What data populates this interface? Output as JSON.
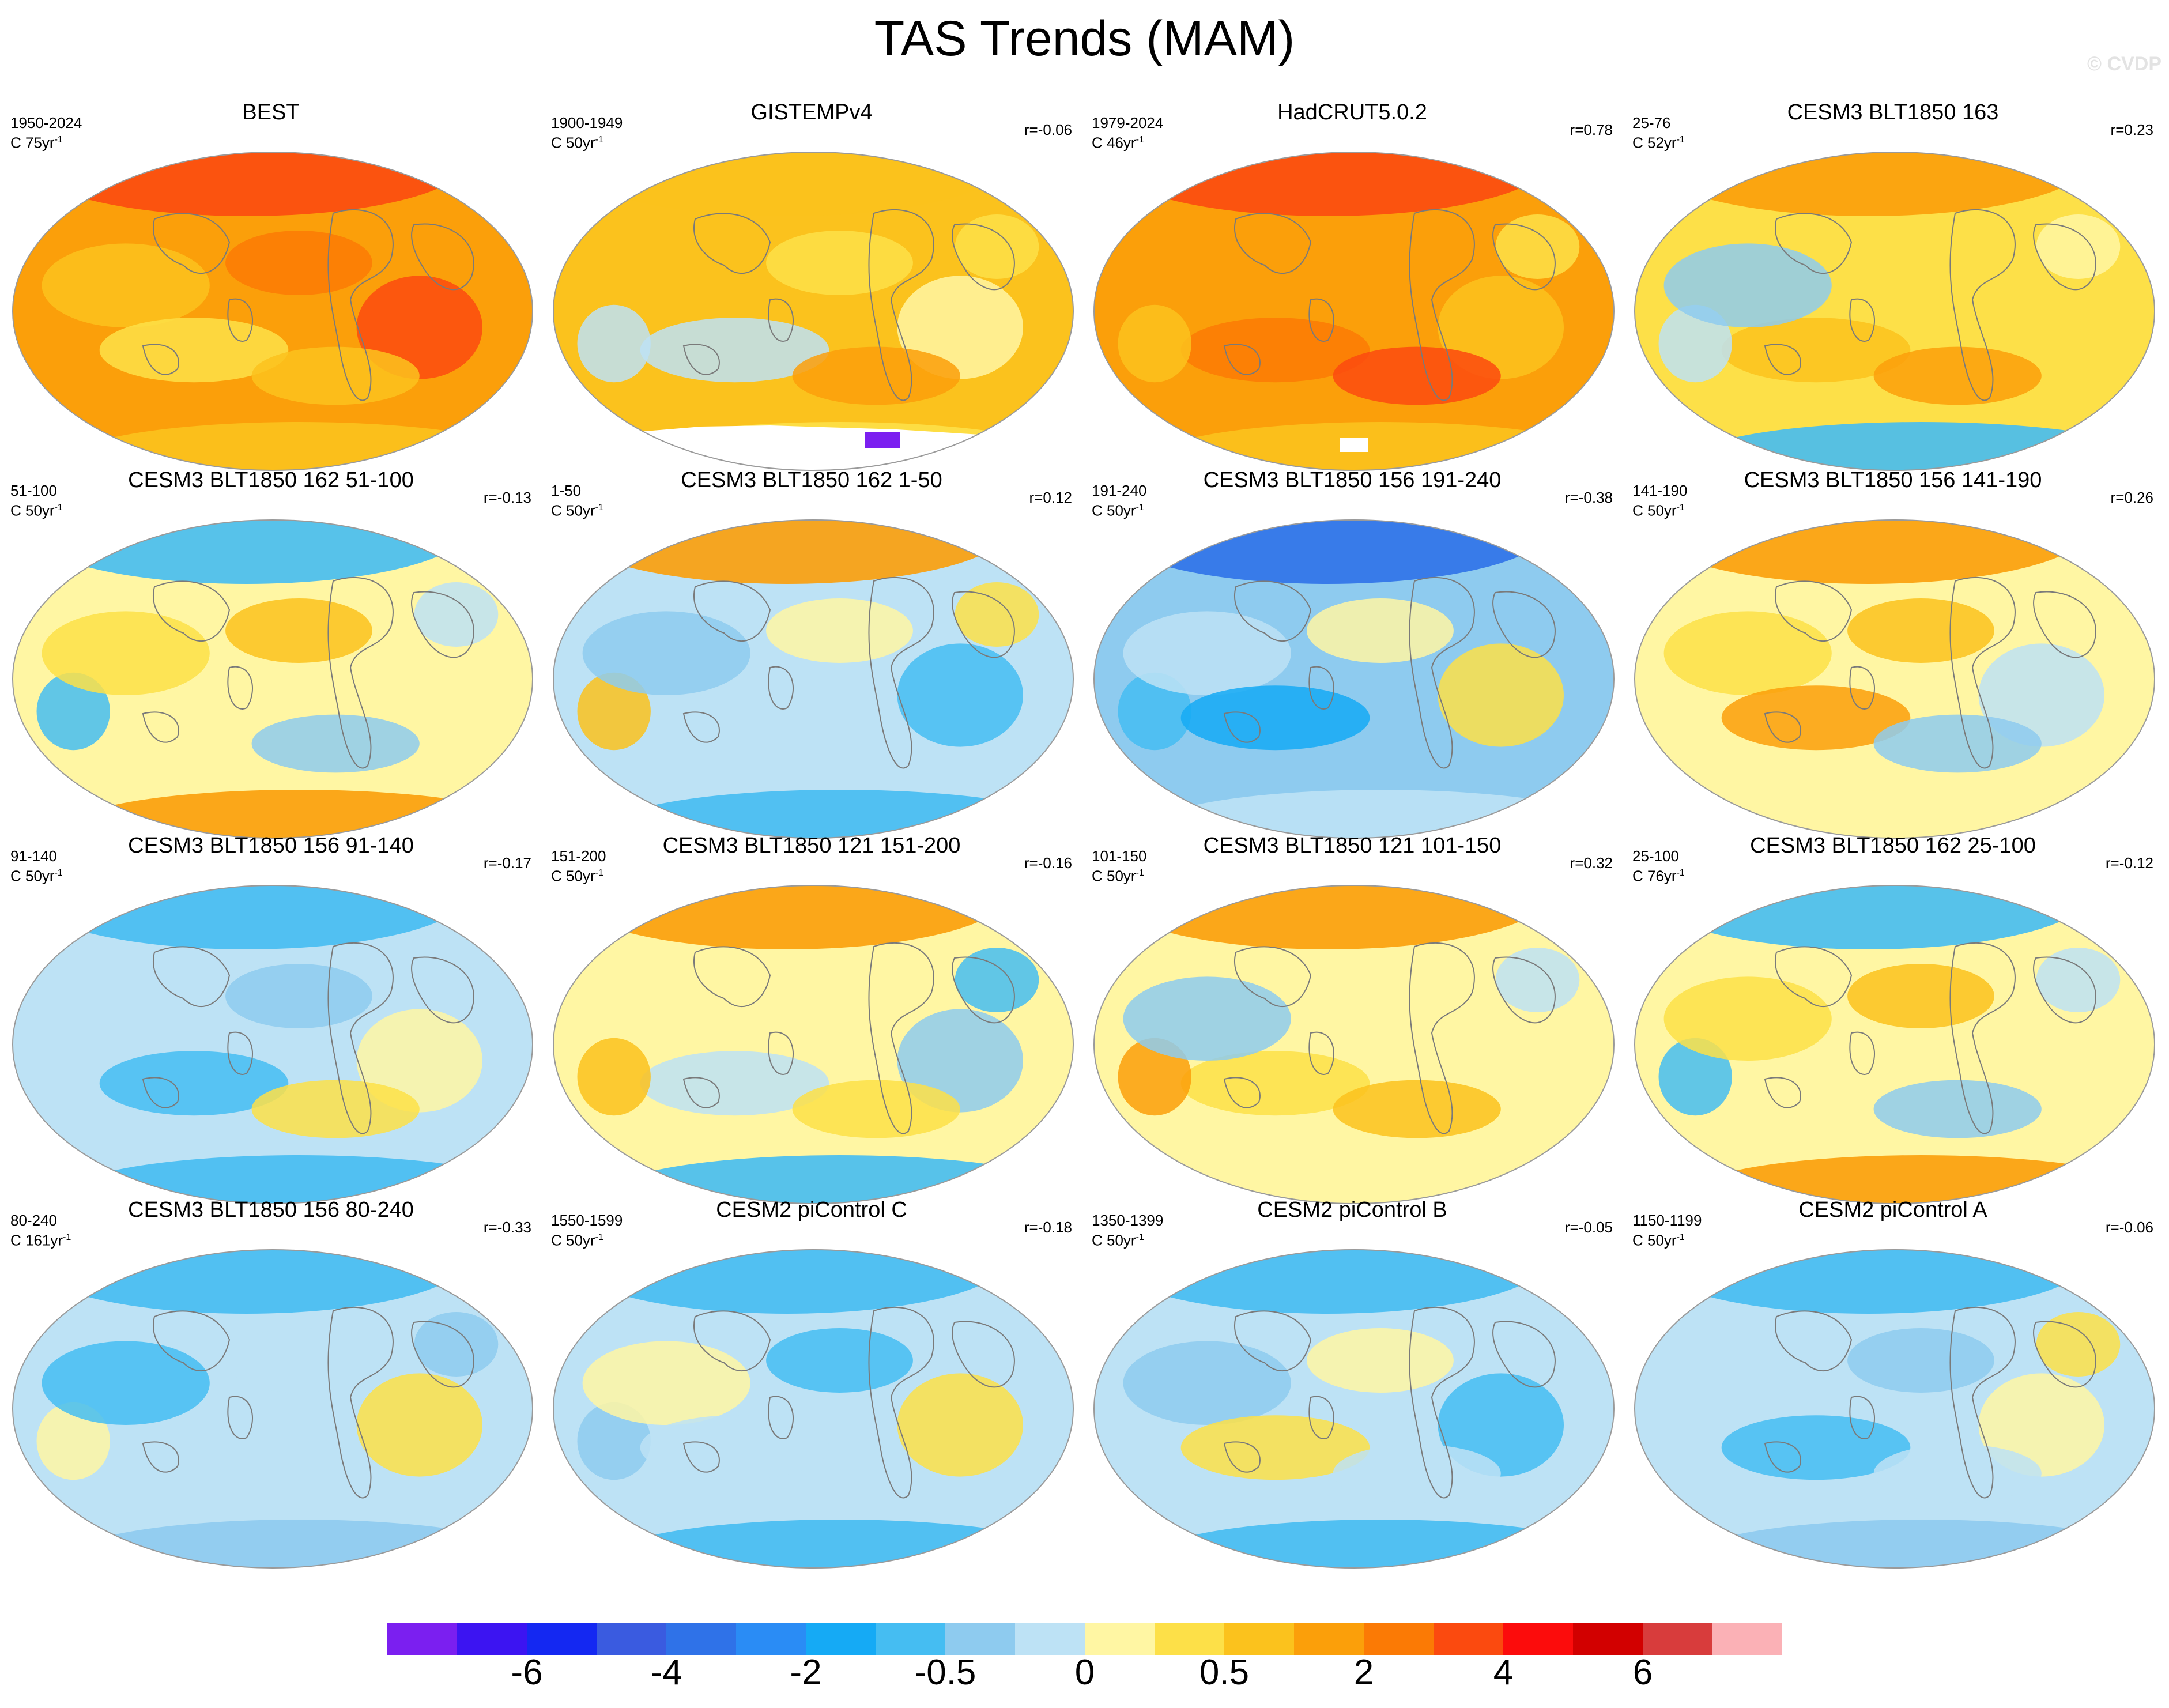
{
  "figure": {
    "title": "TAS Trends (MAM)",
    "watermark": "© CVDP",
    "units_suffix": "yr",
    "units_exponent": "-1"
  },
  "panels": [
    {
      "title": "BEST",
      "years": "1950-2024",
      "span": "C 75yr",
      "corr": "",
      "pattern": "warm-strong",
      "shape": "full"
    },
    {
      "title": "GISTEMPv4",
      "years": "1900-1949",
      "span": "C 50yr",
      "corr": "r=-0.06",
      "pattern": "warm-moderate",
      "shape": "gistemp"
    },
    {
      "title": "HadCRUT5.0.2",
      "years": "1979-2024",
      "span": "C 46yr",
      "corr": "r=0.78",
      "pattern": "warm-strong",
      "shape": "hadcrut"
    },
    {
      "title": "CESM3 BLT1850 163",
      "years": "25-76",
      "span": "C 52yr",
      "corr": "r=0.23",
      "pattern": "warm-north-cool-south",
      "shape": "full"
    },
    {
      "title": "CESM3 BLT1850 162 51-100",
      "years": "51-100",
      "span": "C 50yr",
      "corr": "r=-0.13",
      "pattern": "cool-north-warm-south",
      "shape": "full"
    },
    {
      "title": "CESM3 BLT1850 162 1-50",
      "years": "1-50",
      "span": "C 50yr",
      "corr": "r=0.12",
      "pattern": "mixed-warm-north",
      "shape": "full"
    },
    {
      "title": "CESM3 BLT1850 156 191-240",
      "years": "191-240",
      "span": "C 50yr",
      "corr": "r=-0.38",
      "pattern": "cool-strong-north",
      "shape": "full"
    },
    {
      "title": "CESM3 BLT1850 156 141-190",
      "years": "141-190",
      "span": "C 50yr",
      "corr": "r=0.26",
      "pattern": "warm-north-mixed",
      "shape": "full"
    },
    {
      "title": "CESM3 BLT1850 156 91-140",
      "years": "91-140",
      "span": "C 50yr",
      "corr": "r=-0.17",
      "pattern": "mixed-cool",
      "shape": "full"
    },
    {
      "title": "CESM3 BLT1850 121 151-200",
      "years": "151-200",
      "span": "C 50yr",
      "corr": "r=-0.16",
      "pattern": "mixed-warm-arctic",
      "shape": "full"
    },
    {
      "title": "CESM3 BLT1850 121 101-150",
      "years": "101-150",
      "span": "C 50yr",
      "corr": "r=0.32",
      "pattern": "warm-north-mixed",
      "shape": "full"
    },
    {
      "title": "CESM3 BLT1850 162 25-100",
      "years": "25-100",
      "span": "C 76yr",
      "corr": "r=-0.12",
      "pattern": "cool-north-warm-south",
      "shape": "full"
    },
    {
      "title": "CESM3 BLT1850 156 80-240",
      "years": "80-240",
      "span": "C 161yr",
      "corr": "r=-0.33",
      "pattern": "cool-mild",
      "shape": "full"
    },
    {
      "title": "CESM2 piControl C",
      "years": "1550-1599",
      "span": "C 50yr",
      "corr": "r=-0.18",
      "pattern": "mixed-cool",
      "shape": "full"
    },
    {
      "title": "CESM2 piControl B",
      "years": "1350-1399",
      "span": "C 50yr",
      "corr": "r=-0.05",
      "pattern": "mixed-cool",
      "shape": "full"
    },
    {
      "title": "CESM2 piControl A",
      "years": "1150-1199",
      "span": "C 50yr",
      "corr": "r=-0.06",
      "pattern": "cool-mild",
      "shape": "full"
    }
  ],
  "colorbar": {
    "colors": [
      "#7b1ff0",
      "#3c14f2",
      "#1428f2",
      "#3a5be0",
      "#2f72e8",
      "#2a8cf5",
      "#15aaf5",
      "#45bdf2",
      "#8ecbef",
      "#bde2f5",
      "#fff6a3",
      "#fde048",
      "#fbc21d",
      "#fb9f0a",
      "#fb7a05",
      "#fb4a0f",
      "#fc0c0c",
      "#d20000",
      "#d83c3c",
      "#fbb1b6"
    ],
    "labels": [
      "-6",
      "-4",
      "-2",
      "-0.5",
      "0",
      "0.5",
      "2",
      "4",
      "6"
    ]
  }
}
